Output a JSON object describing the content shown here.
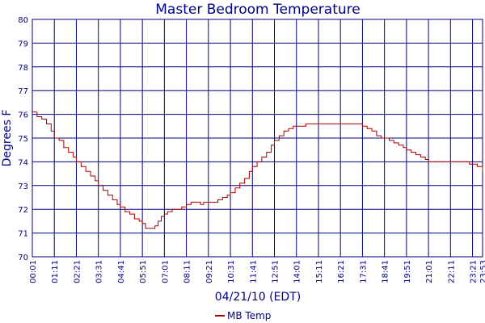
{
  "chart_data": {
    "type": "line",
    "title": "Master Bedroom Temperature",
    "xlabel": "04/21/10 (EDT)",
    "ylabel": "Degrees F",
    "ylim": [
      70,
      80
    ],
    "yticks": [
      "70",
      "71",
      "72",
      "73",
      "74",
      "75",
      "76",
      "77",
      "78",
      "79",
      "80"
    ],
    "xticks": [
      "00:01",
      "01:11",
      "02:21",
      "03:31",
      "04:41",
      "05:51",
      "07:01",
      "08:11",
      "09:21",
      "10:31",
      "11:41",
      "12:51",
      "14:01",
      "15:11",
      "16:21",
      "17:31",
      "18:41",
      "19:51",
      "21:01",
      "22:11",
      "23:21",
      "23:53"
    ],
    "grid": true,
    "legend": "bottom-center",
    "colors": {
      "line": "#aa0000",
      "grid": "#000080",
      "text": "#000080"
    },
    "series": [
      {
        "name": "MB Temp",
        "x": [
          "00:01",
          "00:16",
          "00:31",
          "00:46",
          "01:01",
          "01:11",
          "01:26",
          "01:41",
          "01:56",
          "02:11",
          "02:21",
          "02:36",
          "02:51",
          "03:06",
          "03:21",
          "03:31",
          "03:46",
          "04:01",
          "04:16",
          "04:31",
          "04:41",
          "04:56",
          "05:11",
          "05:26",
          "05:41",
          "05:51",
          "06:01",
          "06:11",
          "06:21",
          "06:31",
          "06:41",
          "06:51",
          "07:01",
          "07:11",
          "07:26",
          "07:41",
          "07:56",
          "08:11",
          "08:26",
          "08:41",
          "08:56",
          "09:06",
          "09:21",
          "09:36",
          "09:51",
          "10:06",
          "10:21",
          "10:31",
          "10:46",
          "11:01",
          "11:16",
          "11:31",
          "11:41",
          "11:56",
          "12:11",
          "12:26",
          "12:41",
          "12:51",
          "13:06",
          "13:21",
          "13:36",
          "13:51",
          "14:01",
          "14:16",
          "14:31",
          "14:46",
          "15:01",
          "15:11",
          "15:31",
          "15:51",
          "16:11",
          "16:21",
          "16:41",
          "17:01",
          "17:21",
          "17:31",
          "17:46",
          "18:01",
          "18:16",
          "18:31",
          "18:41",
          "18:56",
          "19:11",
          "19:26",
          "19:41",
          "19:51",
          "20:06",
          "20:21",
          "20:36",
          "20:51",
          "21:01",
          "21:21",
          "21:41",
          "22:01",
          "22:11",
          "22:31",
          "22:51",
          "23:11",
          "23:21",
          "23:36",
          "23:53"
        ],
        "y": [
          76.1,
          75.9,
          75.8,
          75.6,
          75.3,
          75.0,
          74.9,
          74.6,
          74.4,
          74.2,
          74.0,
          73.8,
          73.6,
          73.4,
          73.2,
          73.0,
          72.8,
          72.6,
          72.4,
          72.2,
          72.1,
          71.9,
          71.8,
          71.6,
          71.5,
          71.4,
          71.2,
          71.2,
          71.2,
          71.3,
          71.5,
          71.7,
          71.8,
          71.9,
          72.0,
          72.0,
          72.1,
          72.2,
          72.3,
          72.3,
          72.2,
          72.3,
          72.3,
          72.3,
          72.4,
          72.5,
          72.6,
          72.7,
          72.9,
          73.1,
          73.3,
          73.6,
          73.8,
          74.0,
          74.2,
          74.4,
          74.7,
          74.9,
          75.1,
          75.3,
          75.4,
          75.5,
          75.5,
          75.5,
          75.6,
          75.6,
          75.6,
          75.6,
          75.6,
          75.6,
          75.6,
          75.6,
          75.6,
          75.6,
          75.6,
          75.5,
          75.4,
          75.3,
          75.1,
          75.0,
          75.0,
          74.9,
          74.8,
          74.7,
          74.6,
          74.5,
          74.4,
          74.3,
          74.2,
          74.1,
          74.0,
          74.0,
          74.0,
          74.0,
          74.0,
          74.0,
          74.0,
          73.9,
          73.9,
          73.8,
          73.6
        ]
      }
    ]
  }
}
